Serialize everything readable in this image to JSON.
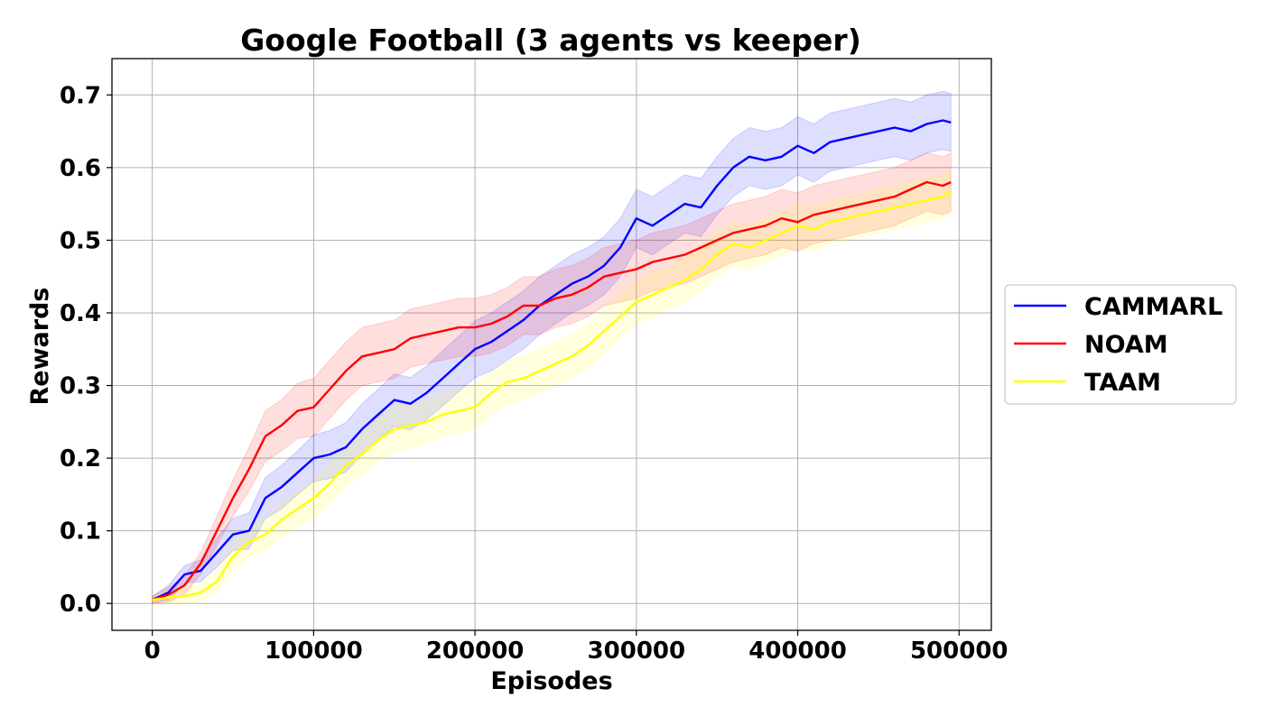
{
  "chart_data": {
    "type": "line",
    "title": "Google Football (3 agents vs keeper)",
    "xlabel": "Episodes",
    "ylabel": "Rewards",
    "xlim": [
      -25000,
      520000
    ],
    "ylim": [
      -0.037,
      0.75
    ],
    "xticks": [
      0,
      100000,
      200000,
      300000,
      400000,
      500000
    ],
    "yticks": [
      0.0,
      0.1,
      0.2,
      0.3,
      0.4,
      0.5,
      0.6,
      0.7
    ],
    "xtick_labels": [
      "0",
      "100000",
      "200000",
      "300000",
      "400000",
      "500000"
    ],
    "ytick_labels": [
      "0.0",
      "0.1",
      "0.2",
      "0.3",
      "0.4",
      "0.5",
      "0.6",
      "0.7"
    ],
    "grid": true,
    "legend_position": "right-outside",
    "shaded_band": "mean ± std",
    "x": [
      0,
      10000,
      20000,
      30000,
      40000,
      50000,
      60000,
      70000,
      80000,
      90000,
      100000,
      110000,
      120000,
      130000,
      140000,
      150000,
      160000,
      170000,
      180000,
      190000,
      200000,
      210000,
      220000,
      230000,
      240000,
      250000,
      260000,
      270000,
      280000,
      290000,
      300000,
      310000,
      320000,
      330000,
      340000,
      350000,
      360000,
      370000,
      380000,
      390000,
      400000,
      410000,
      420000,
      430000,
      440000,
      450000,
      460000,
      470000,
      480000,
      490000,
      495000
    ],
    "series": [
      {
        "name": "CAMMARL",
        "color": "#0000ff",
        "values": [
          0.005,
          0.015,
          0.04,
          0.045,
          0.07,
          0.095,
          0.1,
          0.145,
          0.16,
          0.18,
          0.2,
          0.205,
          0.215,
          0.24,
          0.26,
          0.28,
          0.275,
          0.29,
          0.31,
          0.33,
          0.35,
          0.36,
          0.375,
          0.39,
          0.41,
          0.425,
          0.44,
          0.45,
          0.465,
          0.49,
          0.53,
          0.52,
          0.535,
          0.55,
          0.545,
          0.575,
          0.6,
          0.615,
          0.61,
          0.615,
          0.63,
          0.62,
          0.635,
          0.64,
          0.645,
          0.65,
          0.655,
          0.65,
          0.66,
          0.665,
          0.662
        ],
        "spread": [
          0.005,
          0.01,
          0.012,
          0.015,
          0.02,
          0.022,
          0.025,
          0.028,
          0.03,
          0.03,
          0.032,
          0.033,
          0.034,
          0.035,
          0.035,
          0.036,
          0.036,
          0.037,
          0.038,
          0.038,
          0.039,
          0.04,
          0.04,
          0.04,
          0.04,
          0.04,
          0.04,
          0.04,
          0.04,
          0.04,
          0.04,
          0.04,
          0.04,
          0.04,
          0.04,
          0.04,
          0.04,
          0.04,
          0.04,
          0.04,
          0.04,
          0.04,
          0.04,
          0.04,
          0.04,
          0.04,
          0.04,
          0.04,
          0.04,
          0.04,
          0.04
        ]
      },
      {
        "name": "NOAM",
        "color": "#ff0000",
        "values": [
          0.005,
          0.012,
          0.025,
          0.055,
          0.1,
          0.145,
          0.185,
          0.23,
          0.245,
          0.265,
          0.27,
          0.295,
          0.32,
          0.34,
          0.345,
          0.35,
          0.365,
          0.37,
          0.375,
          0.38,
          0.38,
          0.385,
          0.395,
          0.41,
          0.41,
          0.42,
          0.425,
          0.435,
          0.45,
          0.455,
          0.46,
          0.47,
          0.475,
          0.48,
          0.49,
          0.5,
          0.51,
          0.515,
          0.52,
          0.53,
          0.525,
          0.535,
          0.54,
          0.545,
          0.55,
          0.555,
          0.56,
          0.57,
          0.58,
          0.575,
          0.58
        ],
        "spread": [
          0.005,
          0.01,
          0.012,
          0.015,
          0.02,
          0.025,
          0.03,
          0.035,
          0.035,
          0.038,
          0.04,
          0.04,
          0.04,
          0.04,
          0.04,
          0.04,
          0.04,
          0.04,
          0.04,
          0.04,
          0.04,
          0.04,
          0.04,
          0.04,
          0.04,
          0.04,
          0.04,
          0.04,
          0.04,
          0.04,
          0.04,
          0.04,
          0.04,
          0.04,
          0.04,
          0.04,
          0.04,
          0.04,
          0.04,
          0.04,
          0.04,
          0.04,
          0.04,
          0.04,
          0.04,
          0.04,
          0.04,
          0.04,
          0.04,
          0.04,
          0.04
        ]
      },
      {
        "name": "TAAM",
        "color": "#ffff00",
        "values": [
          0.005,
          0.008,
          0.01,
          0.015,
          0.03,
          0.065,
          0.085,
          0.095,
          0.115,
          0.13,
          0.145,
          0.165,
          0.19,
          0.205,
          0.225,
          0.24,
          0.245,
          0.25,
          0.26,
          0.265,
          0.27,
          0.29,
          0.305,
          0.31,
          0.32,
          0.33,
          0.34,
          0.355,
          0.375,
          0.395,
          0.415,
          0.425,
          0.435,
          0.445,
          0.46,
          0.48,
          0.495,
          0.49,
          0.5,
          0.51,
          0.52,
          0.515,
          0.525,
          0.53,
          0.535,
          0.54,
          0.545,
          0.55,
          0.555,
          0.56,
          0.567
        ],
        "spread": [
          0.005,
          0.008,
          0.01,
          0.012,
          0.015,
          0.018,
          0.02,
          0.022,
          0.024,
          0.025,
          0.026,
          0.027,
          0.028,
          0.028,
          0.029,
          0.03,
          0.03,
          0.03,
          0.03,
          0.03,
          0.03,
          0.03,
          0.03,
          0.03,
          0.03,
          0.03,
          0.03,
          0.03,
          0.03,
          0.03,
          0.03,
          0.03,
          0.03,
          0.03,
          0.03,
          0.03,
          0.03,
          0.03,
          0.03,
          0.03,
          0.03,
          0.03,
          0.03,
          0.03,
          0.03,
          0.03,
          0.03,
          0.03,
          0.03,
          0.03,
          0.03
        ]
      }
    ]
  }
}
